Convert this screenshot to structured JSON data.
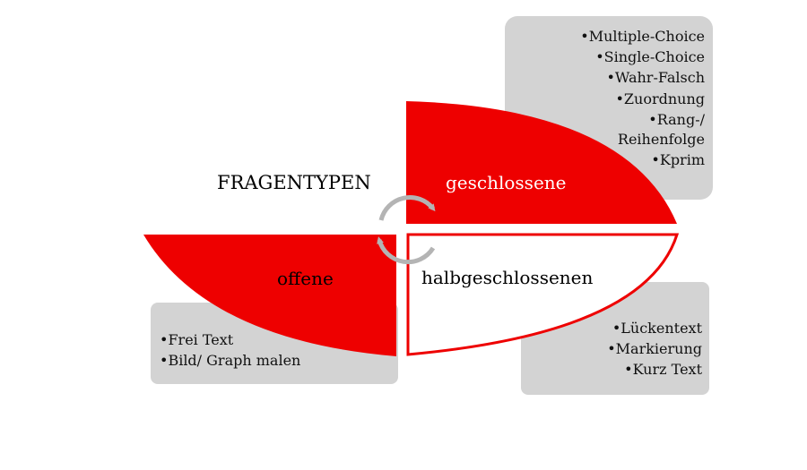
{
  "title": "FRAGENTYPEN",
  "colors": {
    "accent": "#ee0000",
    "box": "#d3d3d3",
    "arrow": "#b4b4b4",
    "text": "#000000"
  },
  "segments": {
    "closed": {
      "label": "geschlossene",
      "items": [
        "•Multiple-Choice",
        "•Single-Choice",
        "•Wahr-Falsch",
        "•Zuordnung",
        "•Rang-/",
        "Reihenfolge",
        "•Kprim"
      ]
    },
    "open": {
      "label": "offene",
      "items": [
        "•Frei Text",
        "•Bild/ Graph malen"
      ]
    },
    "half": {
      "label": "halbgeschlossenen",
      "items": [
        "•Lückentext",
        "•Markierung",
        "•Kurz Text"
      ]
    }
  },
  "icons": [
    "cycle-arrow-icon",
    "cycle-arrow-icon"
  ]
}
